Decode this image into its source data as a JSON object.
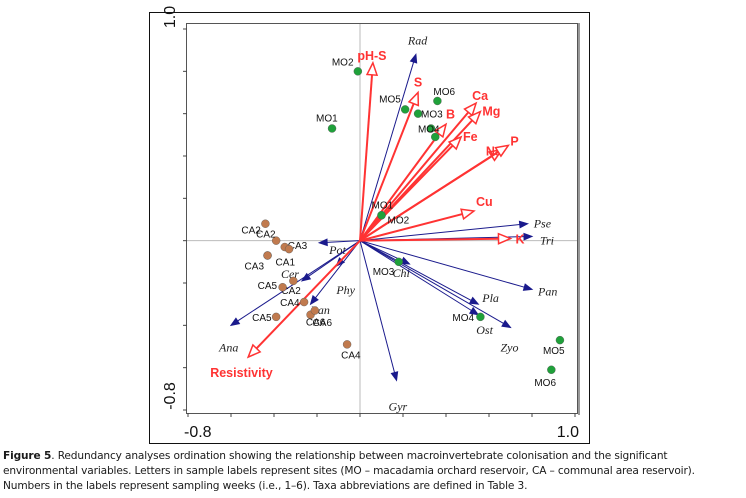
{
  "caption": {
    "label": "Figure 5",
    "text": ". Redundancy analyses ordination showing the relationship between macroinvertebrate colonisation and the significant environmental variables. Letters in sample labels represent sites (MO – macadamia orchard reservoir, CA – communal area reservoir). Numbers in the labels represent sampling weeks (i.e., 1–6). Taxa abbreviations are defined in Table 3."
  },
  "colors": {
    "env": "#ff3333",
    "species": "#1a1a8c",
    "mo_site": "#1fa13a",
    "ca_site": "#c07a4e",
    "axis": "#444444",
    "zero_line": "#bbbbbb"
  },
  "chart_data": {
    "type": "scatter",
    "subtype": "RDA biplot",
    "title": "",
    "xlabel": "",
    "ylabel": "",
    "xlim": [
      -0.8,
      1.0
    ],
    "ylim": [
      -0.8,
      1.0
    ],
    "x_tick_labels": [
      "-0.8",
      "1.0"
    ],
    "y_tick_labels": [
      "1.0",
      "-0.8"
    ],
    "x_ticks": [
      -0.8,
      -0.6,
      -0.4,
      -0.2,
      0.0,
      0.2,
      0.4,
      0.6,
      0.8,
      1.0
    ],
    "y_ticks": [
      1.0,
      0.8,
      0.6,
      0.4,
      0.2,
      0.0,
      -0.2,
      -0.4,
      -0.6,
      -0.8
    ],
    "zero_lines": true,
    "environmental_vectors": [
      {
        "name": "pH-S",
        "x": 0.06,
        "y": 0.84
      },
      {
        "name": "S",
        "x": 0.27,
        "y": 0.7
      },
      {
        "name": "Ca",
        "x": 0.54,
        "y": 0.65
      },
      {
        "name": "Mg",
        "x": 0.56,
        "y": 0.61
      },
      {
        "name": "B",
        "x": 0.4,
        "y": 0.55
      },
      {
        "name": "Fe",
        "x": 0.47,
        "y": 0.49
      },
      {
        "name": "Na",
        "x": 0.66,
        "y": 0.43
      },
      {
        "name": "P",
        "x": 0.69,
        "y": 0.45
      },
      {
        "name": "Cu",
        "x": 0.53,
        "y": 0.14
      },
      {
        "name": "K",
        "x": 0.7,
        "y": 0.01
      },
      {
        "name": "Resistivity",
        "x": -0.52,
        "y": -0.55
      }
    ],
    "species_vectors": [
      {
        "name": "Rad",
        "x": 0.26,
        "y": 0.88
      },
      {
        "name": "Pse",
        "x": 0.78,
        "y": 0.08
      },
      {
        "name": "Tri",
        "x": 0.8,
        "y": 0.02
      },
      {
        "name": "Pot",
        "x": -0.19,
        "y": -0.01
      },
      {
        "name": "Cer",
        "x": -0.27,
        "y": -0.19
      },
      {
        "name": "Phy",
        "x": -0.11,
        "y": -0.12
      },
      {
        "name": "Ana",
        "x": -0.6,
        "y": -0.4
      },
      {
        "name": "Ban",
        "x": -0.23,
        "y": -0.3
      },
      {
        "name": "Chi",
        "x": 0.23,
        "y": -0.11
      },
      {
        "name": "Pla",
        "x": 0.55,
        "y": -0.3
      },
      {
        "name": "Ost",
        "x": 0.55,
        "y": -0.35
      },
      {
        "name": "Zyo",
        "x": 0.7,
        "y": -0.41
      },
      {
        "name": "Pan",
        "x": 0.8,
        "y": -0.23
      },
      {
        "name": "Gyr",
        "x": 0.17,
        "y": -0.66
      }
    ],
    "samples": [
      {
        "label": "MO2",
        "site": "MO",
        "x": -0.01,
        "y": 0.8
      },
      {
        "label": "MO1",
        "site": "MO",
        "x": -0.13,
        "y": 0.53
      },
      {
        "label": "MO5",
        "site": "MO",
        "x": 0.21,
        "y": 0.62
      },
      {
        "label": "MO6",
        "site": "MO",
        "x": 0.36,
        "y": 0.66
      },
      {
        "label": "MO3",
        "site": "MO",
        "x": 0.27,
        "y": 0.6
      },
      {
        "label": "MO4",
        "site": "MO",
        "x": 0.33,
        "y": 0.53
      },
      {
        "label": "",
        "site": "MO",
        "x": 0.35,
        "y": 0.49
      },
      {
        "label": "MO1",
        "site": "MO",
        "x": 0.1,
        "y": 0.12
      },
      {
        "label": "MO2",
        "site": "MO",
        "x": 0.1,
        "y": 0.12
      },
      {
        "label": "MO3",
        "site": "MO",
        "x": 0.18,
        "y": -0.1
      },
      {
        "label": "MO4",
        "site": "MO",
        "x": 0.56,
        "y": -0.36
      },
      {
        "label": "MO5",
        "site": "MO",
        "x": 0.93,
        "y": -0.47
      },
      {
        "label": "MO6",
        "site": "MO",
        "x": 0.89,
        "y": -0.61
      },
      {
        "label": "CA2",
        "site": "CA",
        "x": -0.44,
        "y": 0.08
      },
      {
        "label": "CA2",
        "site": "CA",
        "x": -0.39,
        "y": 0.0
      },
      {
        "label": "CA3",
        "site": "CA",
        "x": -0.35,
        "y": -0.03
      },
      {
        "label": "",
        "site": "CA",
        "x": -0.33,
        "y": -0.04
      },
      {
        "label": "CA1",
        "site": "CA",
        "x": -0.43,
        "y": -0.07
      },
      {
        "label": "CA3",
        "site": "CA",
        "x": -0.43,
        "y": -0.07
      },
      {
        "label": "CA2",
        "site": "CA",
        "x": -0.31,
        "y": -0.19
      },
      {
        "label": "CA5",
        "site": "CA",
        "x": -0.36,
        "y": -0.22
      },
      {
        "label": "CA4",
        "site": "CA",
        "x": -0.26,
        "y": -0.29
      },
      {
        "label": "CA5",
        "site": "CA",
        "x": -0.39,
        "y": -0.36
      },
      {
        "label": "CA6",
        "site": "CA",
        "x": -0.23,
        "y": -0.35
      },
      {
        "label": "CA6",
        "site": "CA",
        "x": -0.21,
        "y": -0.33
      },
      {
        "label": "CA4",
        "site": "CA",
        "x": -0.06,
        "y": -0.49
      }
    ]
  }
}
